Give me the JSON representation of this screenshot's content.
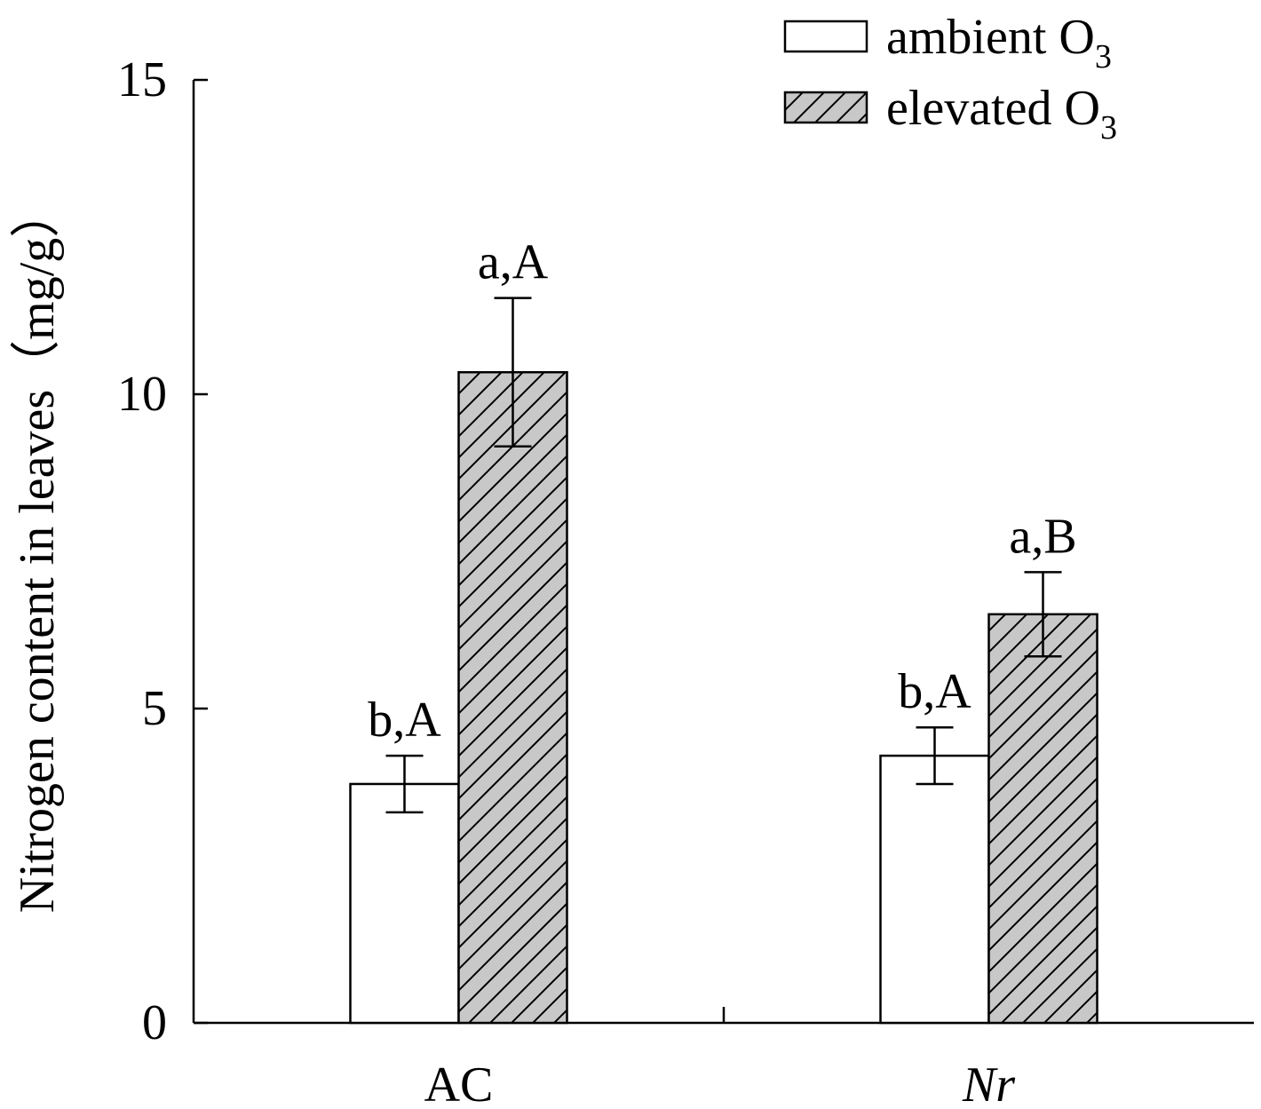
{
  "chart_data": {
    "type": "bar",
    "ylabel": "Nitrogen content in leaves（mg/g）",
    "xlabel": "",
    "ylim": [
      0,
      15
    ],
    "yticks": [
      0,
      5,
      10,
      15
    ],
    "categories": [
      "AC",
      "Nr"
    ],
    "category_italic": [
      false,
      true
    ],
    "series": [
      {
        "name": "ambient O",
        "name_subscript": "3",
        "fill": "#ffffff",
        "hatched": false,
        "values": [
          3.8,
          4.25
        ],
        "errors": [
          0.45,
          0.45
        ],
        "annotations": [
          "b,A",
          "b,A"
        ]
      },
      {
        "name": "elevated O",
        "name_subscript": "3",
        "fill": "#c8c8c8",
        "hatched": true,
        "values": [
          10.35,
          6.5
        ],
        "errors": [
          1.18,
          0.67
        ],
        "annotations": [
          "a,A",
          "a,B"
        ]
      }
    ],
    "legend_position": "top-right",
    "grid": false
  }
}
